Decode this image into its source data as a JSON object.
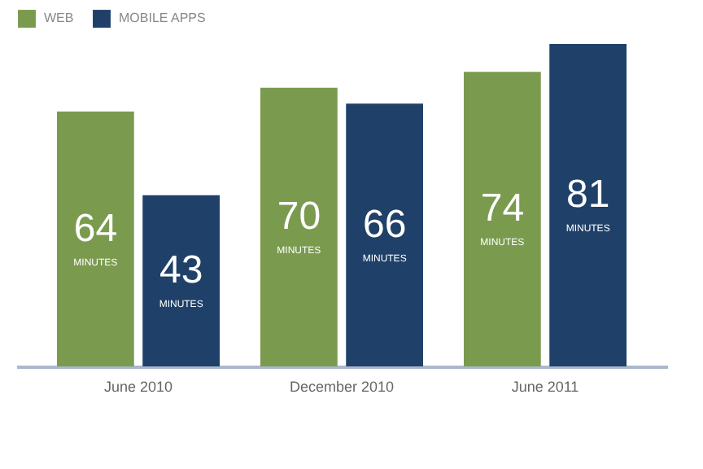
{
  "chart_data": {
    "type": "bar",
    "categories": [
      "June 2010",
      "December 2010",
      "June 2011"
    ],
    "series": [
      {
        "name": "WEB",
        "color": "#7a9a4e",
        "values": [
          64,
          70,
          74
        ]
      },
      {
        "name": "MOBILE APPS",
        "color": "#1f4068",
        "values": [
          43,
          66,
          81
        ]
      }
    ],
    "data_labels": true,
    "annotations": [
      "MINUTES"
    ],
    "legend": "top left",
    "tick_labels": "x"
  }
}
